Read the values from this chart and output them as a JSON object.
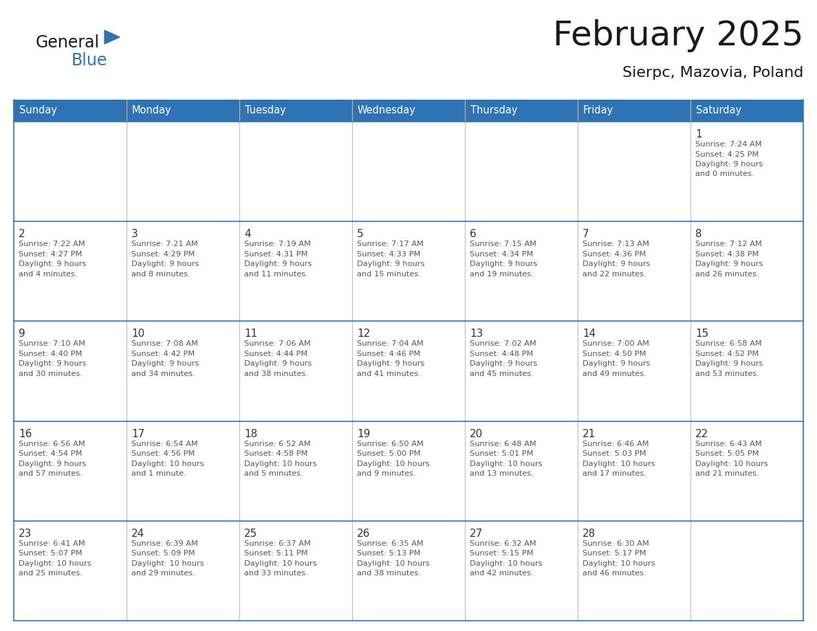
{
  "title": "February 2025",
  "subtitle": "Sierpc, Mazovia, Poland",
  "days_of_week": [
    "Sunday",
    "Monday",
    "Tuesday",
    "Wednesday",
    "Thursday",
    "Friday",
    "Saturday"
  ],
  "header_bg": "#2E74B5",
  "header_text": "#FFFFFF",
  "cell_bg_white": "#FFFFFF",
  "cell_bg_light": "#F0F4F8",
  "border_color": "#2E74B5",
  "grid_line_color": "#BBBBBB",
  "text_color": "#333333",
  "logo_general_color": "#1A1A1A",
  "logo_blue_color": "#2E74B5",
  "weeks": [
    {
      "days": [
        {
          "date": "",
          "info": ""
        },
        {
          "date": "",
          "info": ""
        },
        {
          "date": "",
          "info": ""
        },
        {
          "date": "",
          "info": ""
        },
        {
          "date": "",
          "info": ""
        },
        {
          "date": "",
          "info": ""
        },
        {
          "date": "1",
          "info": "Sunrise: 7:24 AM\nSunset: 4:25 PM\nDaylight: 9 hours\nand 0 minutes."
        }
      ]
    },
    {
      "days": [
        {
          "date": "2",
          "info": "Sunrise: 7:22 AM\nSunset: 4:27 PM\nDaylight: 9 hours\nand 4 minutes."
        },
        {
          "date": "3",
          "info": "Sunrise: 7:21 AM\nSunset: 4:29 PM\nDaylight: 9 hours\nand 8 minutes."
        },
        {
          "date": "4",
          "info": "Sunrise: 7:19 AM\nSunset: 4:31 PM\nDaylight: 9 hours\nand 11 minutes."
        },
        {
          "date": "5",
          "info": "Sunrise: 7:17 AM\nSunset: 4:33 PM\nDaylight: 9 hours\nand 15 minutes."
        },
        {
          "date": "6",
          "info": "Sunrise: 7:15 AM\nSunset: 4:34 PM\nDaylight: 9 hours\nand 19 minutes."
        },
        {
          "date": "7",
          "info": "Sunrise: 7:13 AM\nSunset: 4:36 PM\nDaylight: 9 hours\nand 22 minutes."
        },
        {
          "date": "8",
          "info": "Sunrise: 7:12 AM\nSunset: 4:38 PM\nDaylight: 9 hours\nand 26 minutes."
        }
      ]
    },
    {
      "days": [
        {
          "date": "9",
          "info": "Sunrise: 7:10 AM\nSunset: 4:40 PM\nDaylight: 9 hours\nand 30 minutes."
        },
        {
          "date": "10",
          "info": "Sunrise: 7:08 AM\nSunset: 4:42 PM\nDaylight: 9 hours\nand 34 minutes."
        },
        {
          "date": "11",
          "info": "Sunrise: 7:06 AM\nSunset: 4:44 PM\nDaylight: 9 hours\nand 38 minutes."
        },
        {
          "date": "12",
          "info": "Sunrise: 7:04 AM\nSunset: 4:46 PM\nDaylight: 9 hours\nand 41 minutes."
        },
        {
          "date": "13",
          "info": "Sunrise: 7:02 AM\nSunset: 4:48 PM\nDaylight: 9 hours\nand 45 minutes."
        },
        {
          "date": "14",
          "info": "Sunrise: 7:00 AM\nSunset: 4:50 PM\nDaylight: 9 hours\nand 49 minutes."
        },
        {
          "date": "15",
          "info": "Sunrise: 6:58 AM\nSunset: 4:52 PM\nDaylight: 9 hours\nand 53 minutes."
        }
      ]
    },
    {
      "days": [
        {
          "date": "16",
          "info": "Sunrise: 6:56 AM\nSunset: 4:54 PM\nDaylight: 9 hours\nand 57 minutes."
        },
        {
          "date": "17",
          "info": "Sunrise: 6:54 AM\nSunset: 4:56 PM\nDaylight: 10 hours\nand 1 minute."
        },
        {
          "date": "18",
          "info": "Sunrise: 6:52 AM\nSunset: 4:58 PM\nDaylight: 10 hours\nand 5 minutes."
        },
        {
          "date": "19",
          "info": "Sunrise: 6:50 AM\nSunset: 5:00 PM\nDaylight: 10 hours\nand 9 minutes."
        },
        {
          "date": "20",
          "info": "Sunrise: 6:48 AM\nSunset: 5:01 PM\nDaylight: 10 hours\nand 13 minutes."
        },
        {
          "date": "21",
          "info": "Sunrise: 6:46 AM\nSunset: 5:03 PM\nDaylight: 10 hours\nand 17 minutes."
        },
        {
          "date": "22",
          "info": "Sunrise: 6:43 AM\nSunset: 5:05 PM\nDaylight: 10 hours\nand 21 minutes."
        }
      ]
    },
    {
      "days": [
        {
          "date": "23",
          "info": "Sunrise: 6:41 AM\nSunset: 5:07 PM\nDaylight: 10 hours\nand 25 minutes."
        },
        {
          "date": "24",
          "info": "Sunrise: 6:39 AM\nSunset: 5:09 PM\nDaylight: 10 hours\nand 29 minutes."
        },
        {
          "date": "25",
          "info": "Sunrise: 6:37 AM\nSunset: 5:11 PM\nDaylight: 10 hours\nand 33 minutes."
        },
        {
          "date": "26",
          "info": "Sunrise: 6:35 AM\nSunset: 5:13 PM\nDaylight: 10 hours\nand 38 minutes."
        },
        {
          "date": "27",
          "info": "Sunrise: 6:32 AM\nSunset: 5:15 PM\nDaylight: 10 hours\nand 42 minutes."
        },
        {
          "date": "28",
          "info": "Sunrise: 6:30 AM\nSunset: 5:17 PM\nDaylight: 10 hours\nand 46 minutes."
        },
        {
          "date": "",
          "info": ""
        }
      ]
    }
  ]
}
